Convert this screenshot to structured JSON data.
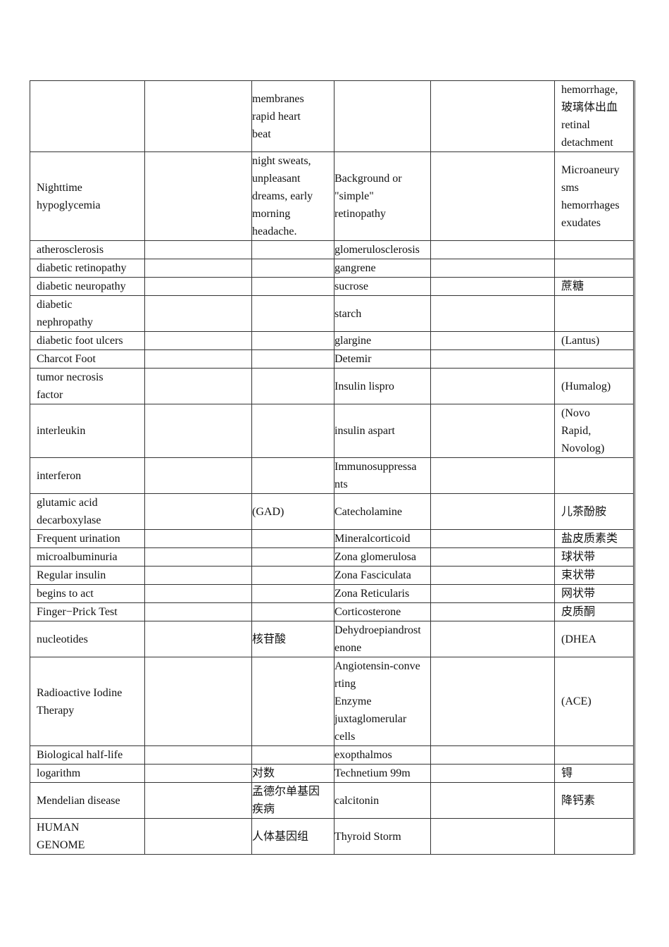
{
  "table": {
    "rows": [
      [
        "",
        "",
        "membranes\n rapid heart\nbeat",
        "",
        "",
        "hemorrhage,\n玻璃体出血\nretinal\ndetachment"
      ],
      [
        "Nighttime\nhypoglycemia",
        "",
        "night sweats,\nunpleasant\ndreams, early\nmorning\nheadache.",
        "Background or\n\"simple\"\nretinopathy",
        "",
        "Microaneury\nsms\nhemorrhages\nexudates"
      ],
      [
        "atherosclerosis",
        "",
        "",
        "glomerulosclerosis",
        "",
        ""
      ],
      [
        "diabetic retinopathy",
        "",
        "",
        "gangrene",
        "",
        ""
      ],
      [
        "diabetic neuropathy",
        "",
        "",
        "sucrose",
        "",
        "蔗糖"
      ],
      [
        "diabetic\nnephropathy",
        "",
        "",
        "starch",
        "",
        ""
      ],
      [
        "diabetic foot ulcers",
        "",
        "",
        "glargine",
        "",
        "(Lantus)"
      ],
      [
        "Charcot Foot",
        "",
        "",
        "Detemir",
        "",
        ""
      ],
      [
        "tumor necrosis\nfactor",
        "",
        "",
        "Insulin lispro",
        "",
        "(Humalog)"
      ],
      [
        "interleukin",
        "",
        "",
        "insulin aspart",
        "",
        "(Novo\nRapid,\nNovolog)"
      ],
      [
        "interferon",
        "",
        "",
        "Immunosuppressa\nnts",
        "",
        ""
      ],
      [
        "glutamic acid\ndecarboxylase",
        "",
        "(GAD)",
        "Catecholamine",
        "",
        "儿茶酚胺"
      ],
      [
        "Frequent urination",
        "",
        "",
        "Mineralcorticoid",
        "",
        "盐皮质素类"
      ],
      [
        "microalbuminuria",
        "",
        "",
        "Zona glomerulosa",
        "",
        "球状带"
      ],
      [
        "Regular insulin",
        "",
        "",
        "Zona Fasciculata",
        "",
        "束状带"
      ],
      [
        "begins to act",
        "",
        "",
        "Zona Reticularis",
        "",
        "网状带"
      ],
      [
        "Finger−Prick Test",
        "",
        "",
        "Corticosterone",
        "",
        "皮质酮"
      ],
      [
        "nucleotides",
        "",
        "核苷酸",
        "Dehydroepiandrost\nenone",
        "",
        "(DHEA"
      ],
      [
        "Radioactive Iodine\nTherapy",
        "",
        "",
        "Angiotensin-conve\nrting\nEnzyme\njuxtaglomerular\ncells",
        "",
        "(ACE)"
      ],
      [
        "Biological half-life",
        "",
        "",
        "exopthalmos",
        "",
        ""
      ],
      [
        "logarithm",
        "",
        "对数",
        "Technetium 99m",
        "",
        "锝"
      ],
      [
        "Mendelian disease",
        "",
        "孟德尔单基因\n疾病",
        "calcitonin",
        "",
        "降钙素"
      ],
      [
        "HUMAN\nGENOME",
        "",
        "人体基因组",
        "Thyroid Storm",
        "",
        ""
      ]
    ]
  }
}
